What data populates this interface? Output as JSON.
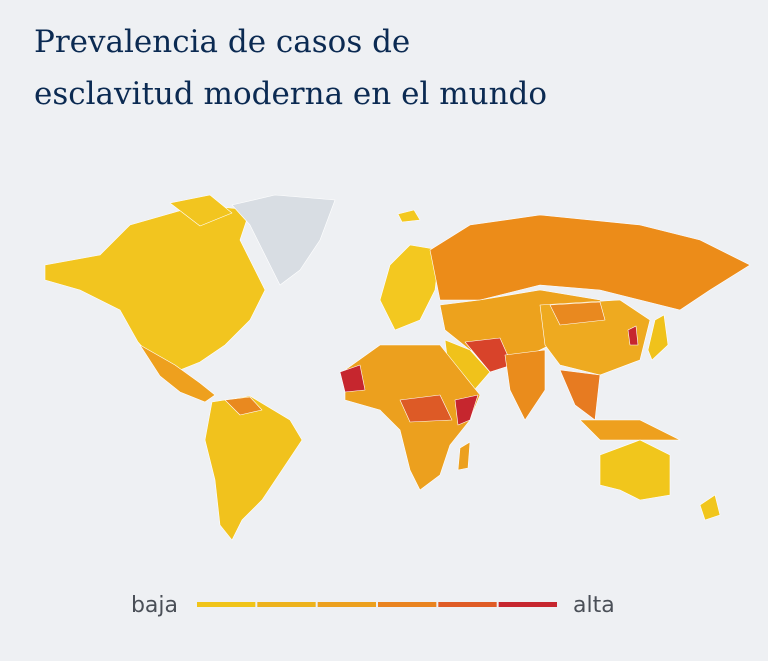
{
  "title": [
    "Prevalencia de casos de",
    "esclavitud moderna en el mundo"
  ],
  "legend": {
    "low": "baja",
    "high": "alta",
    "colors": [
      "#f0c419",
      "#edb21c",
      "#eca01e",
      "#e9831f",
      "#df5b25",
      "#c6262e"
    ]
  }
}
